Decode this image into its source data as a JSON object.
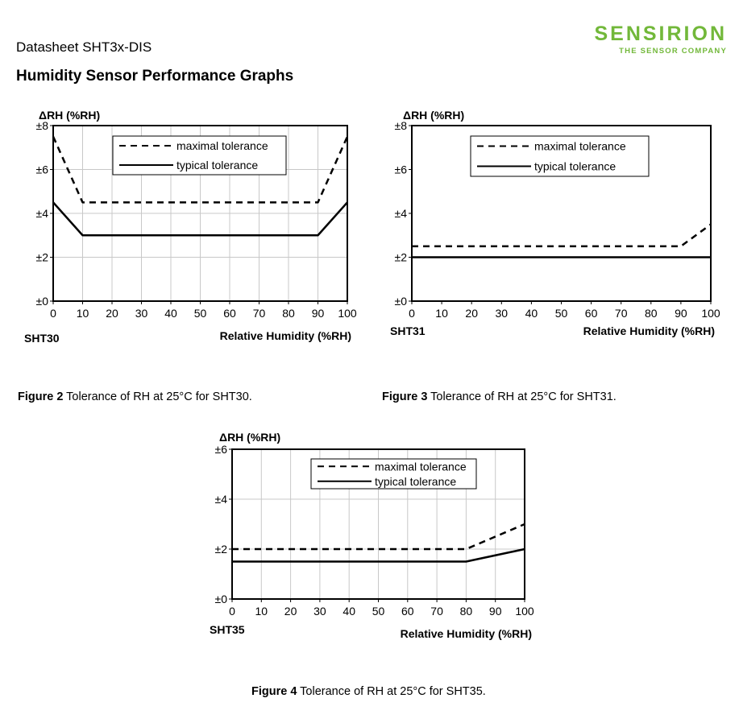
{
  "header": {
    "doc_title": "Datasheet SHT3x-DIS",
    "section_title": "Humidity Sensor Performance Graphs",
    "logo_main": "SENSIRION",
    "logo_sub": "THE SENSOR COMPANY",
    "brand_color": "#72b83a"
  },
  "captions": [
    {
      "label": "Figure 2",
      "text": " Tolerance of RH at 25°C for SHT30."
    },
    {
      "label": "Figure 3",
      "text": " Tolerance of RH at 25°C for SHT31."
    },
    {
      "label": "Figure 4",
      "text": " Tolerance of RH at 25°C for SHT35."
    }
  ],
  "chart_data": [
    {
      "type": "line",
      "sensor_label": "SHT30",
      "ylabel": "ΔRH (%RH)",
      "xlabel": "Relative Humidity (%RH)",
      "xlim": [
        0,
        100
      ],
      "ylim": [
        0,
        8
      ],
      "x_ticks": [
        0,
        10,
        20,
        30,
        40,
        50,
        60,
        70,
        80,
        90,
        100
      ],
      "y_ticks": [
        0,
        2,
        4,
        6,
        8
      ],
      "y_tick_labels": [
        "±0",
        "±2",
        "±4",
        "±6",
        "±8"
      ],
      "grid": true,
      "legend_position": "top-center",
      "series": [
        {
          "name": "maximal tolerance",
          "style": "dashed",
          "x": [
            0,
            10,
            90,
            100
          ],
          "y": [
            7.5,
            4.5,
            4.5,
            7.5
          ]
        },
        {
          "name": "typical tolerance",
          "style": "solid",
          "x": [
            0,
            10,
            90,
            100
          ],
          "y": [
            4.5,
            3,
            3,
            4.5
          ]
        }
      ]
    },
    {
      "type": "line",
      "sensor_label": "SHT31",
      "ylabel": "ΔRH (%RH)",
      "xlabel": "Relative Humidity (%RH)",
      "xlim": [
        0,
        100
      ],
      "ylim": [
        0,
        8
      ],
      "x_ticks": [
        0,
        10,
        20,
        30,
        40,
        50,
        60,
        70,
        80,
        90,
        100
      ],
      "y_ticks": [
        0,
        2,
        4,
        6,
        8
      ],
      "y_tick_labels": [
        "±0",
        "±2",
        "±4",
        "±6",
        "±8"
      ],
      "grid": false,
      "legend_position": "top-right",
      "series": [
        {
          "name": "maximal tolerance",
          "style": "dashed",
          "x": [
            0,
            90,
            100
          ],
          "y": [
            2.5,
            2.5,
            3.5
          ]
        },
        {
          "name": "typical tolerance",
          "style": "solid",
          "x": [
            0,
            100
          ],
          "y": [
            2,
            2
          ]
        }
      ]
    },
    {
      "type": "line",
      "sensor_label": "SHT35",
      "ylabel": "ΔRH (%RH)",
      "xlabel": "Relative Humidity (%RH)",
      "xlim": [
        0,
        100
      ],
      "ylim": [
        0,
        6
      ],
      "x_ticks": [
        0,
        10,
        20,
        30,
        40,
        50,
        60,
        70,
        80,
        90,
        100
      ],
      "y_ticks": [
        0,
        2,
        4,
        6
      ],
      "y_tick_labels": [
        "±0",
        "±2",
        "±4",
        "±6"
      ],
      "grid": true,
      "legend_position": "top-right",
      "series": [
        {
          "name": "maximal tolerance",
          "style": "dashed",
          "x": [
            0,
            80,
            100
          ],
          "y": [
            2,
            2,
            3
          ]
        },
        {
          "name": "typical tolerance",
          "style": "solid",
          "x": [
            0,
            80,
            100
          ],
          "y": [
            1.5,
            1.5,
            2
          ]
        }
      ]
    }
  ]
}
